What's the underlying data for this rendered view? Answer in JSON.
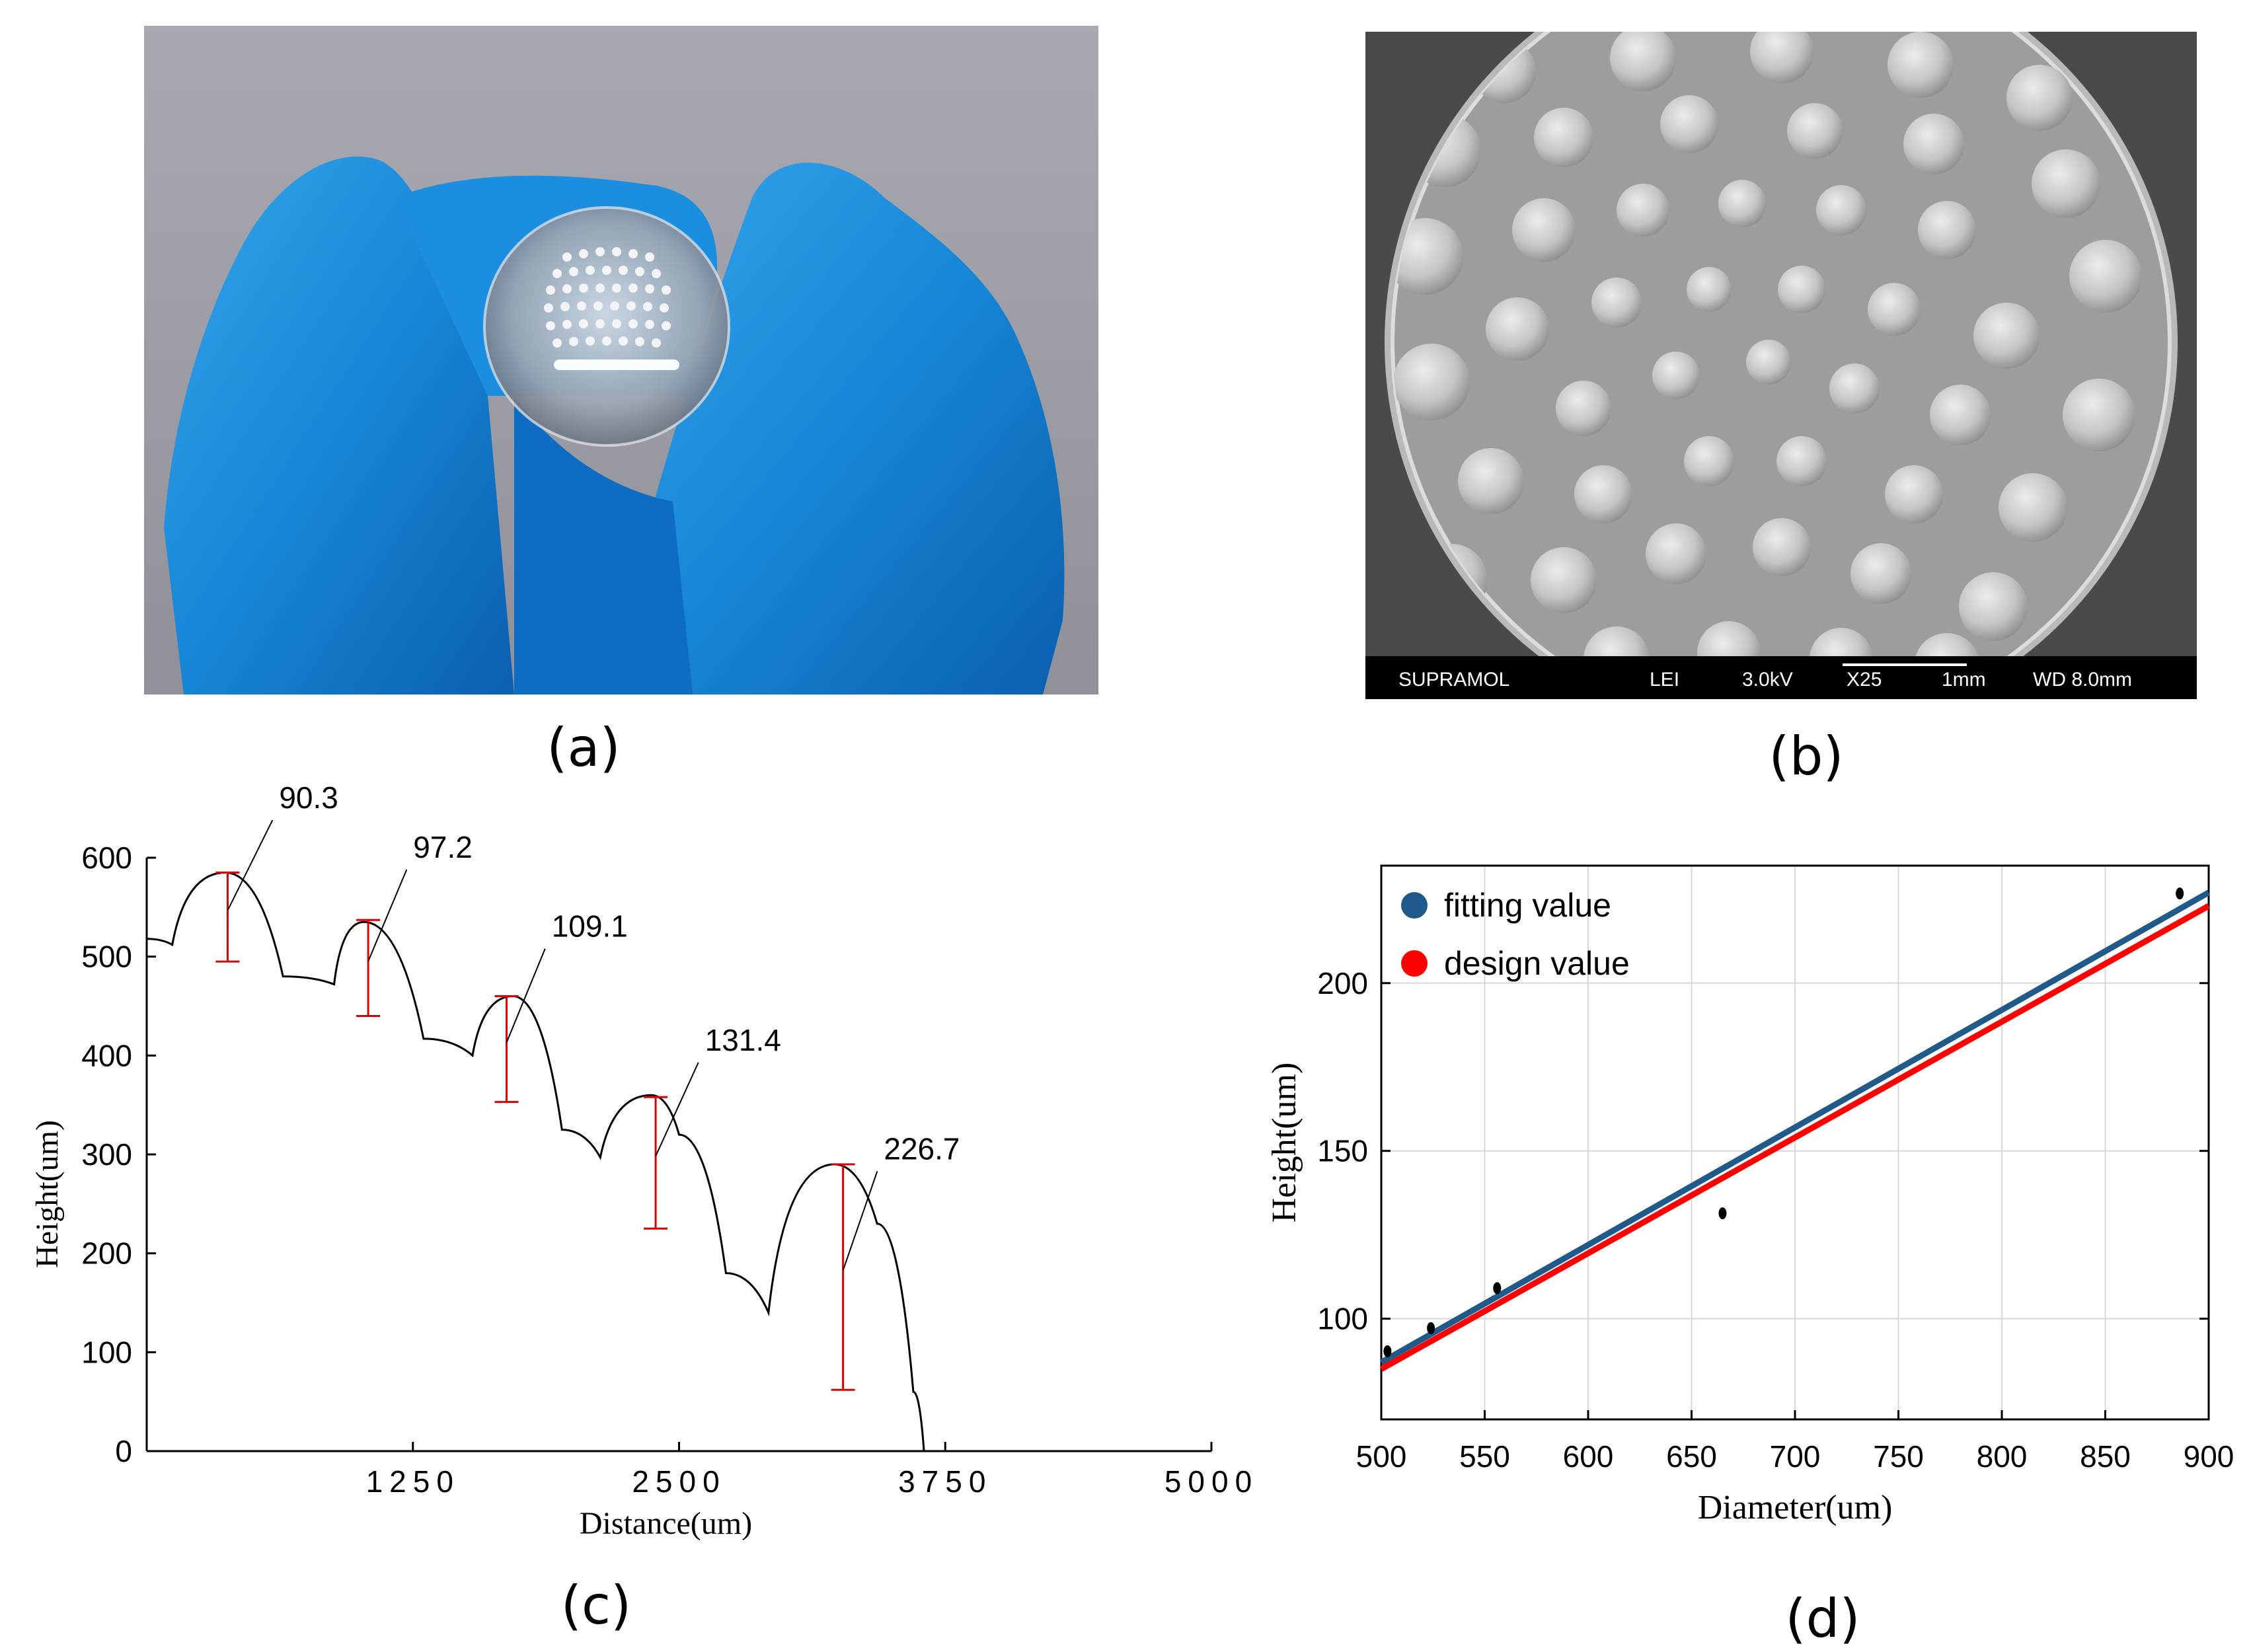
{
  "panels": {
    "a": {
      "caption": "(a)"
    },
    "b": {
      "caption": "(b)",
      "sem_bar": {
        "label": "SUPRAMOL",
        "detector": "LEI",
        "voltage": "3.0kV",
        "magnification": "X25",
        "scale": "1mm",
        "working_distance": "WD 8.0mm"
      }
    },
    "c": {
      "caption": "(c)"
    },
    "d": {
      "caption": "(d)"
    }
  },
  "chart_data": [
    {
      "id": "c",
      "type": "line",
      "title": "",
      "xlabel": "Distance(um)",
      "ylabel": "Height(um)",
      "xlim": [
        0,
        5000
      ],
      "ylim": [
        0,
        600
      ],
      "x_ticks": [
        1250,
        2500,
        3750,
        5000
      ],
      "x_tick_labels": [
        "1250",
        "2500",
        "3750",
        "5000"
      ],
      "y_ticks": [
        0,
        100,
        200,
        300,
        400,
        500,
        600
      ],
      "y_tick_labels": [
        "0",
        "100",
        "200",
        "300",
        "400",
        "500",
        "600"
      ],
      "profile": {
        "x": [
          0,
          120,
          370,
          640,
          880,
          1020,
          1300,
          1530,
          1720,
          1950,
          2130,
          2370,
          2500,
          2720,
          2920,
          3230,
          3430,
          3600,
          3650
        ],
        "y": [
          518,
          512,
          585,
          480,
          472,
          535,
          417,
          400,
          460,
          325,
          297,
          360,
          320,
          180,
          140,
          290,
          230,
          60,
          0
        ]
      },
      "lenses": [
        {
          "x": 380,
          "top": 585,
          "bottom": 495,
          "height_label": "90.3",
          "label_x": 870,
          "label_y": 650
        },
        {
          "x": 1040,
          "top": 537,
          "bottom": 440,
          "height_label": "97.2",
          "label_x": 1500,
          "label_y": 600
        },
        {
          "x": 1690,
          "top": 460,
          "bottom": 353,
          "height_label": "109.1",
          "label_x": 2150,
          "label_y": 520
        },
        {
          "x": 2390,
          "top": 358,
          "bottom": 225,
          "height_label": "131.4",
          "label_x": 2870,
          "label_y": 405
        },
        {
          "x": 3270,
          "top": 290,
          "bottom": 62,
          "height_label": "226.7",
          "label_x": 3710,
          "label_y": 295
        }
      ]
    },
    {
      "id": "d",
      "type": "scatter",
      "title": "",
      "xlabel": "Diameter(um)",
      "ylabel": "Height(um)",
      "xlim": [
        500,
        900
      ],
      "ylim": [
        70,
        235
      ],
      "x_ticks": [
        500,
        550,
        600,
        650,
        700,
        750,
        800,
        850,
        900
      ],
      "x_tick_labels": [
        "500",
        "550",
        "600",
        "650",
        "700",
        "750",
        "800",
        "850",
        "900"
      ],
      "y_ticks": [
        100,
        150,
        200
      ],
      "y_tick_labels": [
        "100",
        "150",
        "200"
      ],
      "grid": true,
      "points": {
        "x": [
          503,
          524,
          556,
          665,
          886
        ],
        "y": [
          90.3,
          97.2,
          109.1,
          131.4,
          226.7
        ]
      },
      "series": [
        {
          "name": "fitting value",
          "color": "#1f5a8a",
          "x": [
            500,
            900
          ],
          "y": [
            87,
            227
          ]
        },
        {
          "name": "design value",
          "color": "#ff0000",
          "x": [
            500,
            900
          ],
          "y": [
            85,
            223
          ]
        }
      ],
      "legend": "top-left"
    }
  ]
}
